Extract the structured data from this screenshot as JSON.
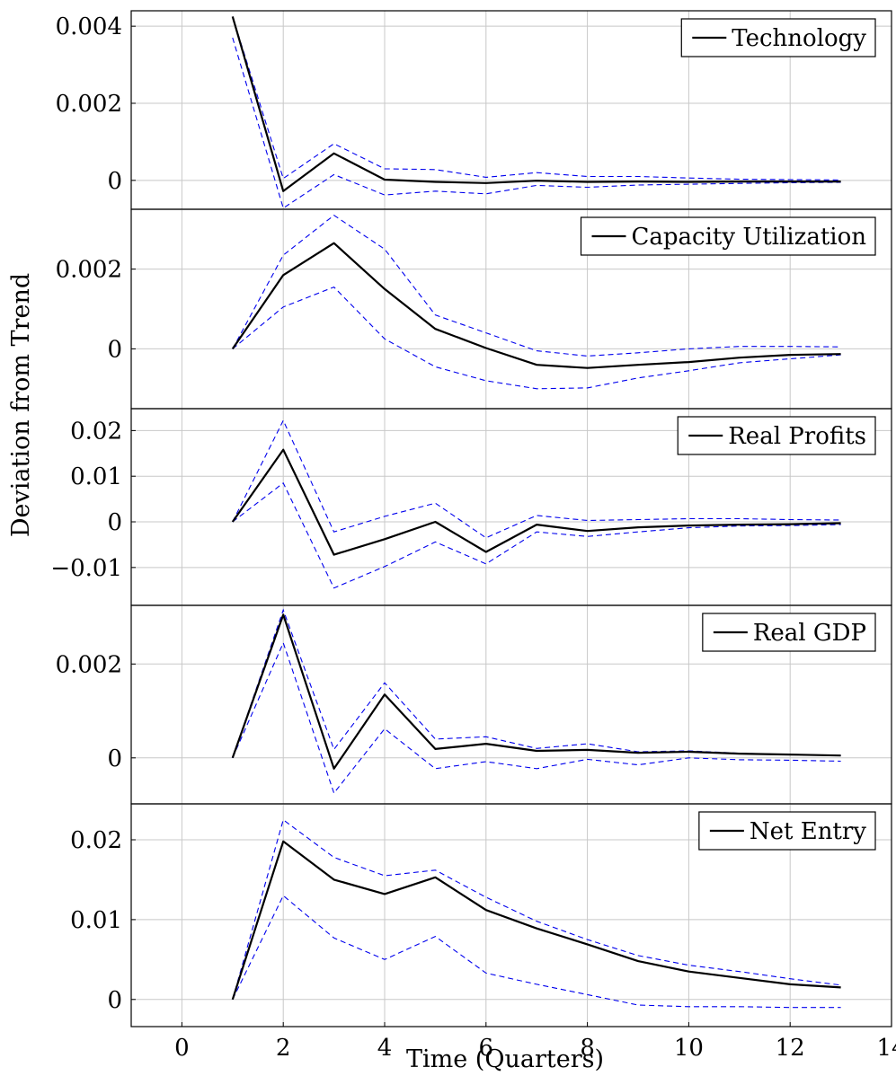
{
  "chart_data": {
    "type": "line",
    "xlabel": "Time (Quarters)",
    "ylabel": "Deviation from Trend",
    "xlim": [
      -1,
      14
    ],
    "xticks": [
      0,
      2,
      4,
      6,
      8,
      10,
      12,
      14
    ],
    "grid": true,
    "legend_position": "top-right",
    "colors": {
      "irf": "#000000",
      "bands": "#0000ee",
      "grid": "#c8c8c8"
    },
    "panels": [
      {
        "legend": "Technology",
        "ylim": [
          -0.00075,
          0.0044
        ],
        "yticks": [
          0,
          0.002,
          0.004
        ],
        "ytick_labels": [
          "0",
          "0.002",
          "0.004"
        ],
        "x": [
          1,
          2,
          3,
          4,
          5,
          6,
          7,
          8,
          9,
          10,
          11,
          12,
          13
        ],
        "series": [
          {
            "role": "irf",
            "values": [
              0.00425,
              -0.00028,
              0.0007,
              2e-05,
              -4e-05,
              -7e-05,
              -1e-05,
              -4e-05,
              -3e-05,
              -4e-05,
              -3e-05,
              -3e-05,
              -3e-05
            ]
          },
          {
            "role": "upper",
            "values": [
              0.00425,
              5e-05,
              0.00095,
              0.0003,
              0.00028,
              8e-05,
              0.0002,
              0.0001,
              0.0001,
              6e-05,
              3e-05,
              2e-05,
              1e-05
            ]
          },
          {
            "role": "lower",
            "values": [
              0.0037,
              -0.00072,
              0.00015,
              -0.00038,
              -0.00028,
              -0.00035,
              -0.00013,
              -0.00018,
              -0.00012,
              -0.0001,
              -8e-05,
              -6e-05,
              -5e-05
            ]
          }
        ]
      },
      {
        "legend": "Capacity Utilization",
        "ylim": [
          -0.0015,
          0.0035
        ],
        "yticks": [
          0,
          0.002
        ],
        "ytick_labels": [
          "0",
          "0.002"
        ],
        "x": [
          1,
          2,
          3,
          4,
          5,
          6,
          7,
          8,
          9,
          10,
          11,
          12,
          13
        ],
        "series": [
          {
            "role": "irf",
            "values": [
              0,
              0.00185,
              0.00265,
              0.0015,
              0.0005,
              2e-05,
              -0.0004,
              -0.00048,
              -0.0004,
              -0.00033,
              -0.00022,
              -0.00015,
              -0.00013
            ]
          },
          {
            "role": "upper",
            "values": [
              0,
              0.00235,
              0.00335,
              0.0025,
              0.00085,
              0.0004,
              -5e-05,
              -0.00018,
              -0.0001,
              0,
              6e-05,
              6e-05,
              5e-05
            ]
          },
          {
            "role": "lower",
            "values": [
              0,
              0.00105,
              0.00155,
              0.00025,
              -0.00045,
              -0.0008,
              -0.001,
              -0.00098,
              -0.00073,
              -0.00055,
              -0.00035,
              -0.00025,
              -0.00015
            ]
          }
        ]
      },
      {
        "legend": "Real Profits",
        "ylim": [
          -0.0183,
          0.0248
        ],
        "yticks": [
          -0.01,
          0,
          0.01,
          0.02
        ],
        "ytick_labels": [
          "−0.01",
          "0",
          "0.01",
          "0.02"
        ],
        "x": [
          1,
          2,
          3,
          4,
          5,
          6,
          7,
          8,
          9,
          10,
          11,
          12,
          13
        ],
        "series": [
          {
            "role": "irf",
            "values": [
              0,
              0.0158,
              -0.0072,
              -0.0038,
              0,
              -0.0066,
              -0.0006,
              -0.002,
              -0.0012,
              -0.0008,
              -0.0006,
              -0.0005,
              -0.0003
            ]
          },
          {
            "role": "upper",
            "values": [
              0,
              0.0222,
              -0.0022,
              0.0012,
              0.0041,
              -0.0035,
              0.0014,
              0.0003,
              0.0005,
              0.0007,
              0.0007,
              0.0005,
              0.0004
            ]
          },
          {
            "role": "lower",
            "values": [
              0,
              0.0085,
              -0.0145,
              -0.0098,
              -0.0044,
              -0.0092,
              -0.0022,
              -0.0032,
              -0.0022,
              -0.0013,
              -0.0009,
              -0.0008,
              -0.0006
            ]
          }
        ]
      },
      {
        "legend": "Real GDP",
        "ylim": [
          -0.00098,
          0.00325
        ],
        "yticks": [
          0,
          0.002
        ],
        "ytick_labels": [
          "0",
          "0.002"
        ],
        "x": [
          1,
          2,
          3,
          4,
          5,
          6,
          7,
          8,
          9,
          10,
          11,
          12,
          13
        ],
        "series": [
          {
            "role": "irf",
            "values": [
              0,
              0.00305,
              -0.00023,
              0.00135,
              0.00019,
              0.0003,
              0.00015,
              0.00017,
              0.00011,
              0.00013,
              9e-05,
              7e-05,
              5e-05
            ]
          },
          {
            "role": "upper",
            "values": [
              0,
              0.00315,
              0.00018,
              0.0016,
              0.0004,
              0.00045,
              0.0002,
              0.0003,
              0.00013,
              0.00015,
              0.0001,
              7e-05,
              5e-05
            ]
          },
          {
            "role": "lower",
            "values": [
              0,
              0.00245,
              -0.00075,
              0.00062,
              -0.00023,
              -8e-05,
              -0.00023,
              -3e-05,
              -0.00015,
              0,
              -4e-05,
              -5e-05,
              -7e-05
            ]
          }
        ]
      },
      {
        "legend": "Net Entry",
        "ylim": [
          -0.0034,
          0.0245
        ],
        "yticks": [
          0,
          0.01,
          0.02
        ],
        "ytick_labels": [
          "0",
          "0.01",
          "0.02"
        ],
        "x": [
          1,
          2,
          3,
          4,
          5,
          6,
          7,
          8,
          9,
          10,
          11,
          12,
          13
        ],
        "series": [
          {
            "role": "irf",
            "values": [
              0,
              0.0198,
              0.015,
              0.0132,
              0.0153,
              0.0112,
              0.0089,
              0.0069,
              0.0048,
              0.0035,
              0.0027,
              0.0019,
              0.0015
            ]
          },
          {
            "role": "upper",
            "values": [
              0,
              0.0225,
              0.0178,
              0.0155,
              0.0162,
              0.0128,
              0.0098,
              0.0075,
              0.0055,
              0.0043,
              0.0035,
              0.0026,
              0.0018
            ]
          },
          {
            "role": "lower",
            "values": [
              0,
              0.013,
              0.0077,
              0.005,
              0.0079,
              0.0033,
              0.0019,
              0.0006,
              -0.0007,
              -0.0009,
              -0.0009,
              -0.001,
              -0.001
            ]
          }
        ]
      }
    ]
  }
}
